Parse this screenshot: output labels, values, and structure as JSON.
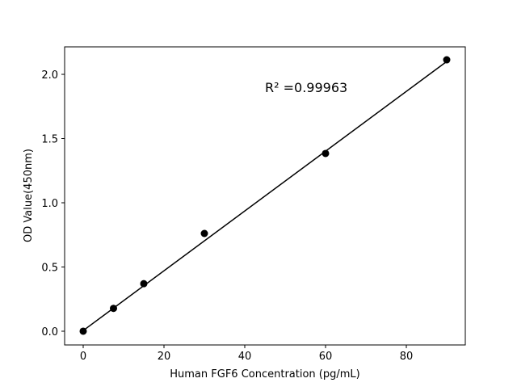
{
  "chart_data": {
    "type": "scatter",
    "title": "",
    "xlabel": "Human FGF6 Concentration (pg/mL)",
    "ylabel": "OD Value(450nm)",
    "xlim": [
      -4.6,
      94.6
    ],
    "ylim": [
      -0.107,
      2.214
    ],
    "xticks": [
      0,
      20,
      40,
      60,
      80
    ],
    "xtick_labels": [
      "0",
      "20",
      "40",
      "60",
      "80"
    ],
    "yticks": [
      0.0,
      0.5,
      1.0,
      1.5,
      2.0
    ],
    "ytick_labels": [
      "0.0",
      "0.5",
      "1.0",
      "1.5",
      "2.0"
    ],
    "grid": false,
    "points": {
      "x": [
        0,
        7.5,
        15,
        30,
        60,
        90
      ],
      "y": [
        0.0,
        0.178,
        0.37,
        0.761,
        1.384,
        2.113
      ]
    },
    "fit_line": {
      "x": [
        0,
        90
      ],
      "y": [
        0.005,
        2.1
      ]
    },
    "annotation": "R² =0.99963",
    "annotation_position": {
      "x": 45,
      "y": 1.9
    },
    "point_color": "#000000",
    "line_color": "#000000"
  }
}
